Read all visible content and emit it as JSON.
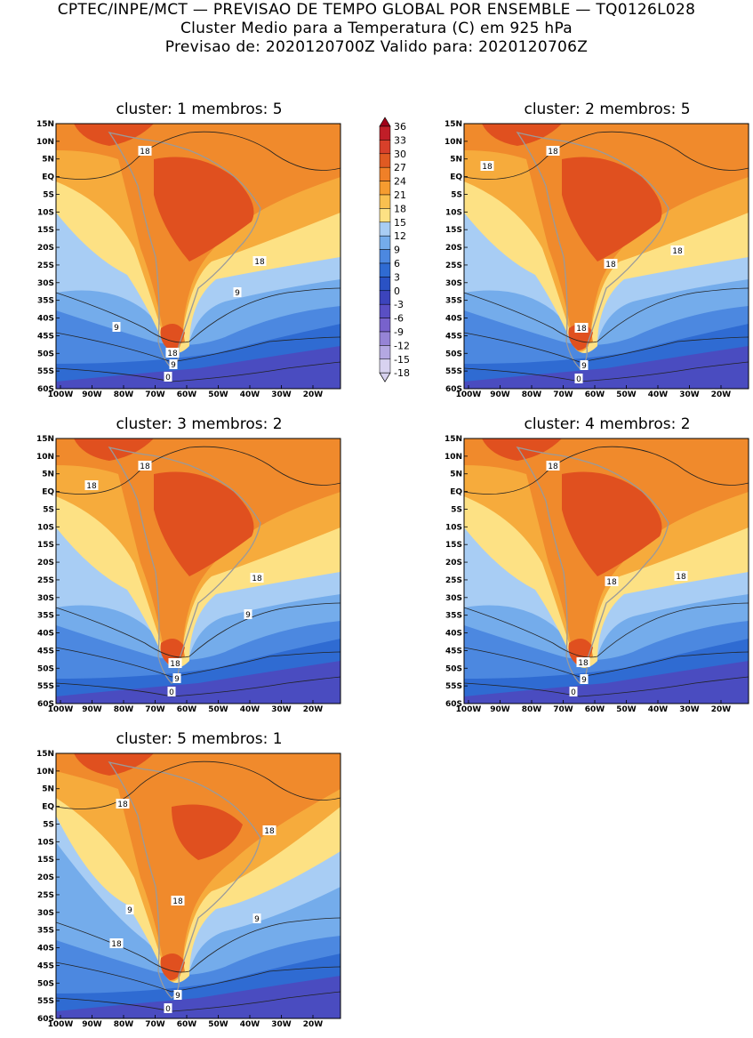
{
  "header": {
    "line1": "CPTEC/INPE/MCT — PREVISAO DE TEMPO GLOBAL POR ENSEMBLE — TQ0126L028",
    "line2": "Cluster Medio para a Temperatura (C) em 925 hPa",
    "line3": "Previsao de: 2020120700Z    Valido para: 2020120706Z"
  },
  "panels": [
    {
      "title": "cluster: 1   membros: 5",
      "labels": [
        "18",
        "18",
        "9",
        "9",
        "18",
        "9",
        "0"
      ]
    },
    {
      "title": "cluster: 2   membros: 5",
      "labels": [
        "18",
        "18",
        "18",
        "18",
        "18",
        "9",
        "0"
      ]
    },
    {
      "title": "cluster: 3   membros: 2",
      "labels": [
        "18",
        "18",
        "18",
        "9",
        "18",
        "9",
        "0"
      ]
    },
    {
      "title": "cluster: 4   membros: 2",
      "labels": [
        "18",
        "18",
        "18",
        "18",
        "9",
        "0"
      ]
    },
    {
      "title": "cluster: 5   membros: 1",
      "labels": [
        "18",
        "18",
        "18",
        "9",
        "9",
        "18",
        "9",
        "0"
      ]
    }
  ],
  "axes": {
    "lat_ticks": [
      "15N",
      "10N",
      "5N",
      "EQ",
      "5S",
      "10S",
      "15S",
      "20S",
      "25S",
      "30S",
      "35S",
      "40S",
      "45S",
      "50S",
      "55S",
      "60S"
    ],
    "lon_ticks": [
      "100W",
      "90W",
      "80W",
      "70W",
      "60W",
      "50W",
      "40W",
      "30W",
      "20W"
    ]
  },
  "colorbar": {
    "levels": [
      "36",
      "33",
      "30",
      "27",
      "24",
      "21",
      "18",
      "15",
      "12",
      "9",
      "6",
      "3",
      "0",
      "-3",
      "-6",
      "-9",
      "-12",
      "-15",
      "-18"
    ],
    "colors": [
      "#a00018",
      "#c01e28",
      "#d8402a",
      "#e05a22",
      "#f08028",
      "#f59c30",
      "#f9c050",
      "#fde184",
      "#a8cdf4",
      "#74aceb",
      "#4c88e0",
      "#2f6bd2",
      "#2a52c4",
      "#3c44bc",
      "#5a4fc4",
      "#7862cc",
      "#9684d6",
      "#b4a8e2",
      "#d8d2f0"
    ]
  }
}
